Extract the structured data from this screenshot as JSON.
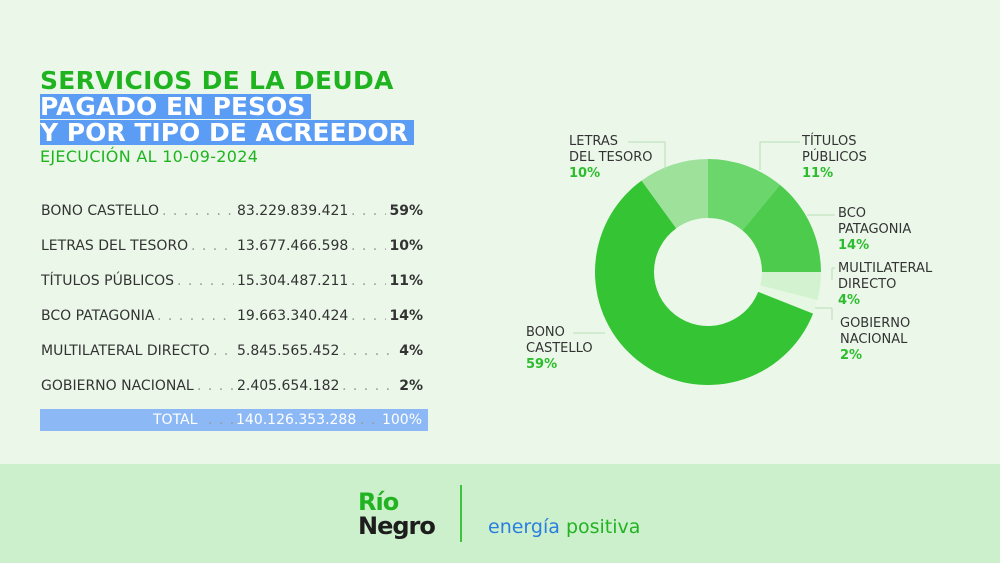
{
  "header": {
    "title": "SERVICIOS DE LA DEUDA",
    "line2": "PAGADO EN PESOS",
    "line3": "Y POR TIPO DE ACREEDOR",
    "subtitle": "EJECUCIÓN AL 10-09-2024"
  },
  "table": {
    "rows": [
      {
        "label": "BONO CASTELLO",
        "value": "83.229.839.421",
        "pct": "59%"
      },
      {
        "label": "LETRAS DEL TESORO",
        "value": "13.677.466.598",
        "pct": "10%"
      },
      {
        "label": "TÍTULOS PÚBLICOS",
        "value": "15.304.487.211",
        "pct": "11%"
      },
      {
        "label": "BCO PATAGONIA",
        "value": "19.663.340.424",
        "pct": "14%"
      },
      {
        "label": "MULTILATERAL DIRECTO",
        "value": "5.845.565.452",
        "pct": "4%"
      },
      {
        "label": "GOBIERNO NACIONAL",
        "value": "2.405.654.182",
        "pct": "2%"
      }
    ],
    "total": {
      "label": "TOTAL",
      "value": "140.126.353.288",
      "pct": "100%"
    }
  },
  "chart_data": {
    "type": "pie",
    "donut": true,
    "categories": [
      "TÍTULOS PÚBLICOS",
      "BCO PATAGONIA",
      "MULTILATERAL DIRECTO",
      "GOBIERNO NACIONAL",
      "BONO CASTELLO",
      "LETRAS DEL TESORO"
    ],
    "values": [
      11,
      14,
      4,
      2,
      59,
      10
    ],
    "labels": [
      {
        "l1": "TÍTULOS",
        "l2": "PÚBLICOS",
        "pct": "11%"
      },
      {
        "l1": "BCO",
        "l2": "PATAGONIA",
        "pct": "14%"
      },
      {
        "l1": "MULTILATERAL",
        "l2": "DIRECTO",
        "pct": "4%"
      },
      {
        "l1": "GOBIERNO",
        "l2": "NACIONAL",
        "pct": "2%"
      },
      {
        "l1": "BONO",
        "l2": "CASTELLO",
        "pct": "59%"
      },
      {
        "l1": "LETRAS",
        "l2": "DEL TESORO",
        "pct": "10%"
      }
    ],
    "colors": [
      "#6bd66b",
      "#4ccb4c",
      "#d3f2cf",
      "#e6f7e3",
      "#34c434",
      "#9de19b"
    ]
  },
  "footer": {
    "logo_line1": "Río",
    "logo_line2": "Negro",
    "tag1": "energía",
    "tag2": "positiva",
    "logo_green": "#22b322",
    "tag_blue": "#2a7de1"
  }
}
